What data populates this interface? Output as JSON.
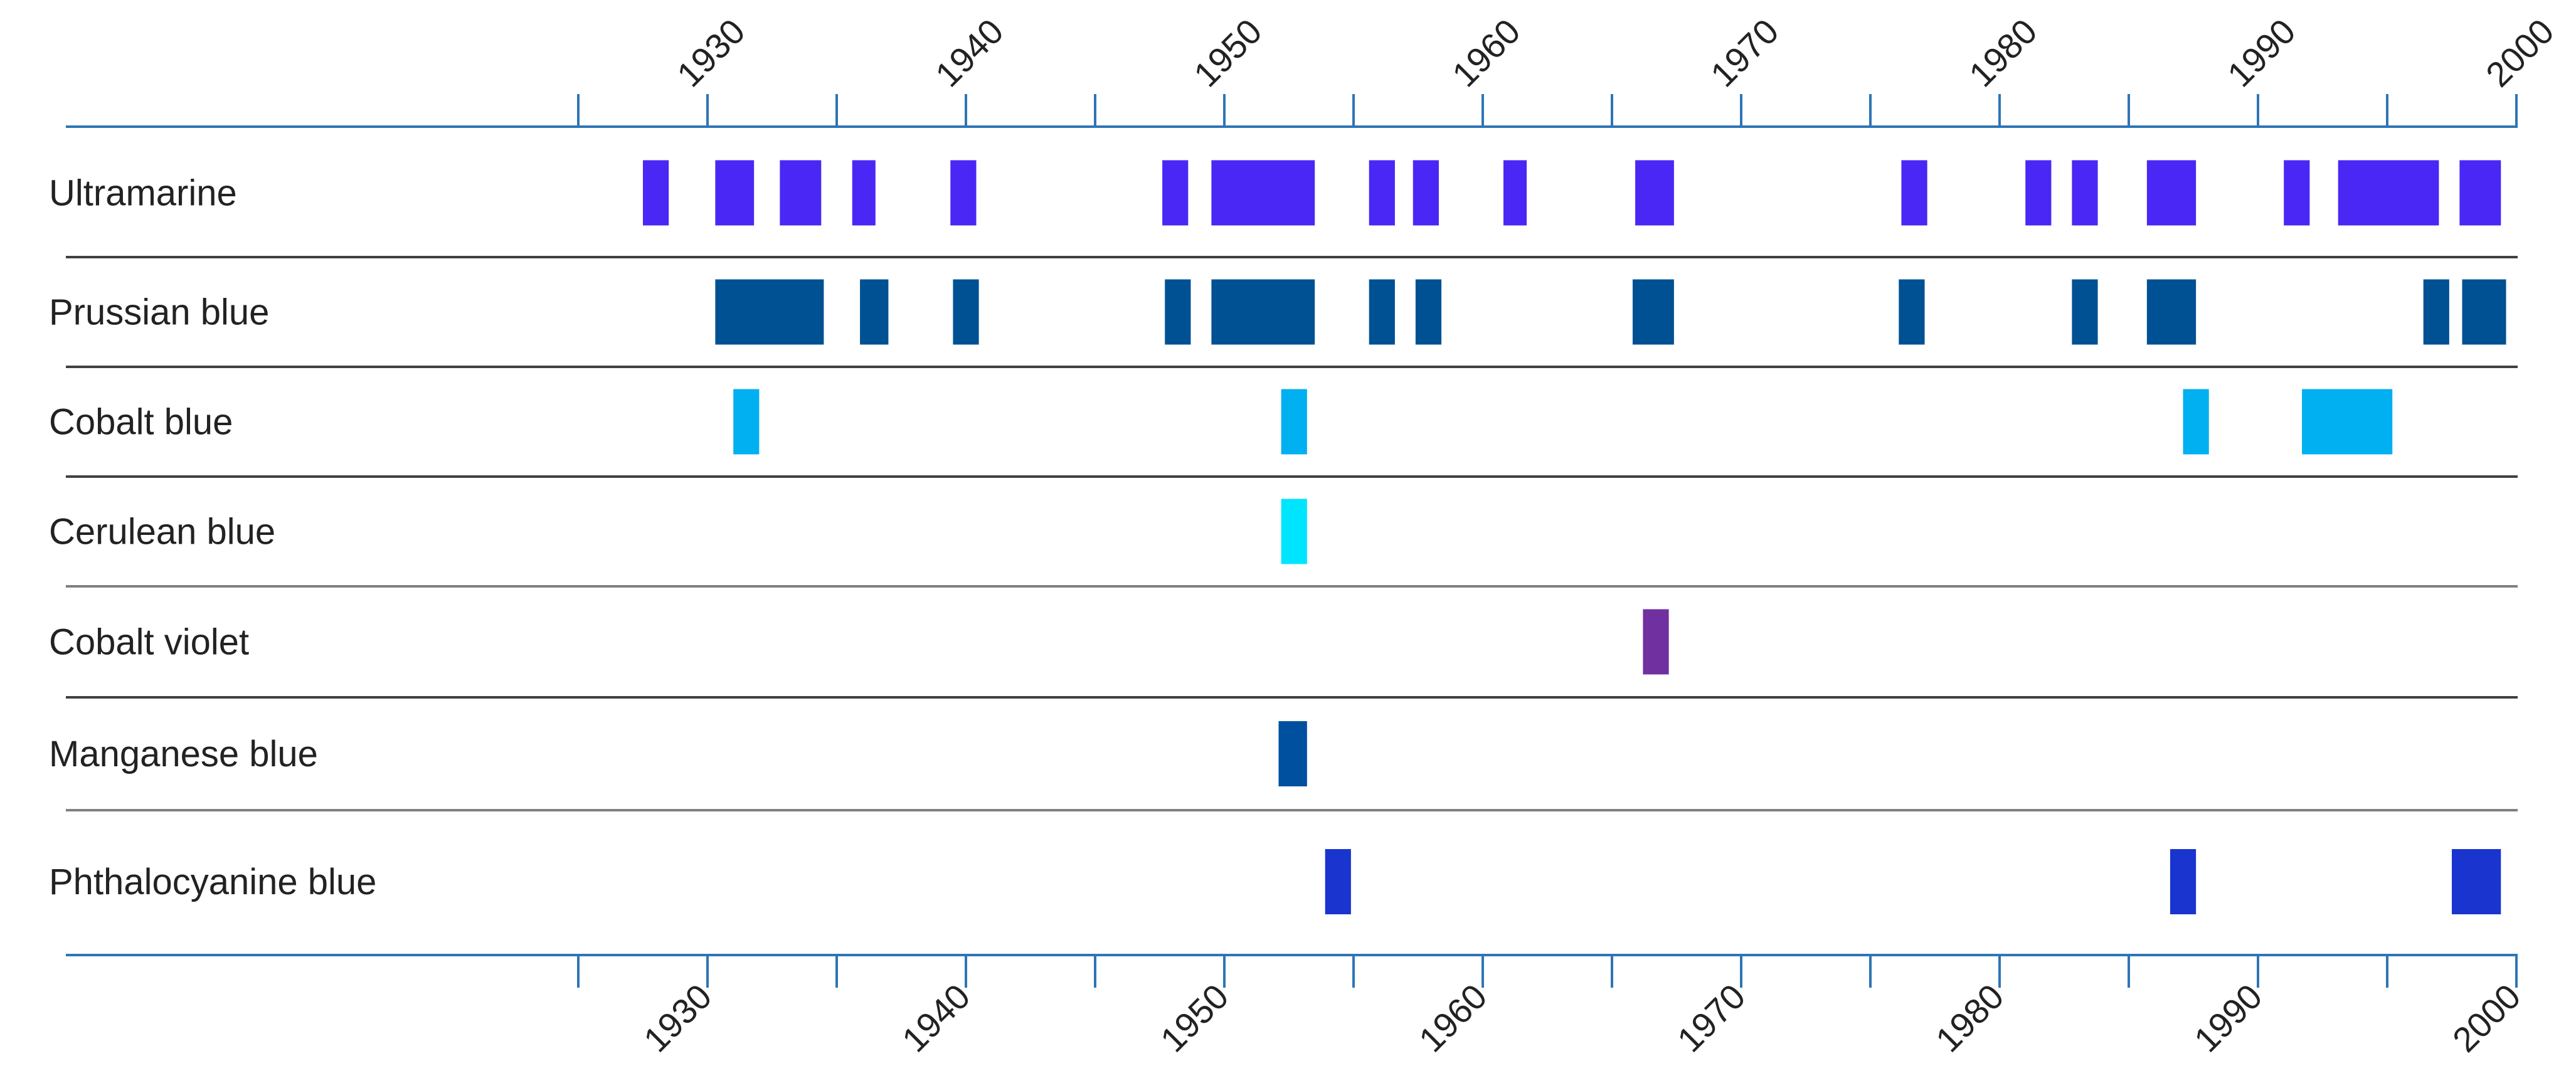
{
  "chart_data": {
    "type": "bar",
    "orientation": "horizontal-timeline",
    "title": "",
    "xlabel": "",
    "ylabel": "",
    "xlim": [
      1925,
      2000
    ],
    "x_ticks": [
      1930,
      1940,
      1950,
      1960,
      1970,
      1980,
      1990,
      2000
    ],
    "x_tick_labels": [
      "1930",
      "1940",
      "1950",
      "1960",
      "1970",
      "1980",
      "1990",
      "2000"
    ],
    "tick_positions": "top-and-bottom",
    "grid": false,
    "legend": "none",
    "categories": [
      "Ultramarine",
      "Prussian blue",
      "Cobalt blue",
      "Cerulean blue",
      "Cobalt violet",
      "Manganese blue",
      "Phthalocyanine blue"
    ],
    "series": [
      {
        "category": "Ultramarine",
        "color": "#4a27f5",
        "intervals": [
          [
            1927.5,
            1928.5
          ],
          [
            1930.3,
            1931.8
          ],
          [
            1932.8,
            1934.4
          ],
          [
            1935.6,
            1936.5
          ],
          [
            1939.4,
            1940.4
          ],
          [
            1947.6,
            1948.6
          ],
          [
            1949.5,
            1953.5
          ],
          [
            1955.6,
            1956.6
          ],
          [
            1957.3,
            1958.3
          ],
          [
            1960.8,
            1961.7
          ],
          [
            1965.9,
            1967.4
          ],
          [
            1976.2,
            1977.2
          ],
          [
            1981.0,
            1982.0
          ],
          [
            1982.8,
            1983.8
          ],
          [
            1985.7,
            1987.6
          ],
          [
            1991.0,
            1992.0
          ],
          [
            1993.1,
            1997.0
          ],
          [
            1997.8,
            1999.4
          ]
        ]
      },
      {
        "category": "Prussian blue",
        "color": "#005193",
        "intervals": [
          [
            1930.3,
            1934.5
          ],
          [
            1935.9,
            1937.0
          ],
          [
            1939.5,
            1940.5
          ],
          [
            1947.7,
            1948.7
          ],
          [
            1949.5,
            1953.5
          ],
          [
            1955.6,
            1956.6
          ],
          [
            1957.4,
            1958.4
          ],
          [
            1965.8,
            1967.4
          ],
          [
            1976.1,
            1977.1
          ],
          [
            1982.8,
            1983.8
          ],
          [
            1985.7,
            1987.6
          ],
          [
            1996.4,
            1997.4
          ],
          [
            1997.9,
            1999.6
          ]
        ]
      },
      {
        "category": "Cobalt blue",
        "color": "#00b0f0",
        "intervals": [
          [
            1931.0,
            1932.0
          ],
          [
            1952.2,
            1953.2
          ],
          [
            1987.1,
            1988.1
          ],
          [
            1991.7,
            1995.2
          ]
        ]
      },
      {
        "category": "Cerulean blue",
        "color": "#00e5ff",
        "intervals": [
          [
            1952.2,
            1953.2
          ]
        ]
      },
      {
        "category": "Cobalt violet",
        "color": "#7030a0",
        "intervals": [
          [
            1966.2,
            1967.2
          ]
        ]
      },
      {
        "category": "Manganese blue",
        "color": "#0050a0",
        "intervals": [
          [
            1952.1,
            1953.2
          ]
        ]
      },
      {
        "category": "Phthalocyanine blue",
        "color": "#1934cf",
        "intervals": [
          [
            1953.9,
            1954.9
          ],
          [
            1986.6,
            1987.6
          ],
          [
            1997.5,
            1999.4
          ]
        ]
      }
    ],
    "colors": {
      "axis": "#2e75b6",
      "row_divider_dark": "#404040",
      "row_divider_gray": "#808080"
    }
  }
}
